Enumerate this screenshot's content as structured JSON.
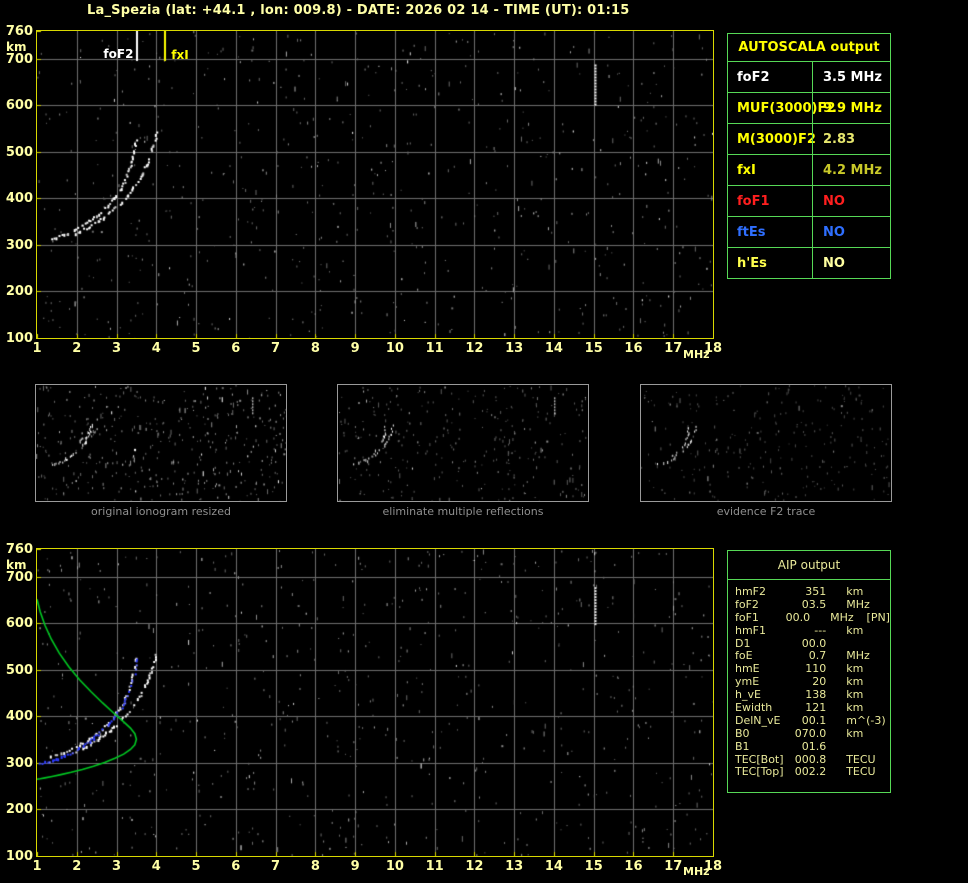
{
  "window": {
    "title": "La_Spezia (lat: +44.1 , lon: 009.8) - DATE: 2026 02 14 - TIME (UT): 01:15"
  },
  "colors": {
    "background": "#000000",
    "axis_text": "#ffffa6",
    "plot_border": "#d8d800",
    "grid": "#6f6f6f",
    "table_border": "#56d856",
    "caption": "#8f8f8f",
    "trace_white": "#ffffff",
    "scaled_trace_blue": "#2e3cff",
    "profile_green": "#00c822",
    "aip_text": "#e9e99a"
  },
  "autoscala_panel": {
    "title": "AUTOSCALA output",
    "title_color": "#ffff00",
    "rows": [
      {
        "label": "foF2",
        "value": "3.5 MHz",
        "label_color": "#ffffff",
        "value_color": "#ffffff"
      },
      {
        "label": "MUF(3000)F2",
        "value": "9.9 MHz",
        "label_color": "#ffff00",
        "value_color": "#ffff00"
      },
      {
        "label": "M(3000)F2",
        "value": "2.83",
        "label_color": "#ffff00",
        "value_color": "#e6e66e"
      },
      {
        "label": "fxI",
        "value": "4.2 MHz",
        "label_color": "#ffff00",
        "value_color": "#c9c929"
      },
      {
        "label": "foF1",
        "value": "NO",
        "label_color": "#ff1f1f",
        "value_color": "#ff1f1f"
      },
      {
        "label": "ftEs",
        "value": "NO",
        "label_color": "#2f6fff",
        "value_color": "#2f6fff"
      },
      {
        "label": "h'Es",
        "value": "NO",
        "label_color": "#ffff4d",
        "value_color": "#ffffa0"
      }
    ]
  },
  "aip_panel": {
    "title": "AIP output",
    "rows": [
      {
        "label": "hmF2",
        "value": "351",
        "unit": "km",
        "extra": ""
      },
      {
        "label": "foF2",
        "value": "03.5",
        "unit": "MHz",
        "extra": ""
      },
      {
        "label": "foF1",
        "value": "00.0",
        "unit": "MHz",
        "extra": "[PN]"
      },
      {
        "label": "hmF1",
        "value": "---",
        "unit": "km",
        "extra": ""
      },
      {
        "label": "D1",
        "value": "00.0",
        "unit": "",
        "extra": ""
      },
      {
        "label": "foE",
        "value": "0.7",
        "unit": "MHz",
        "extra": ""
      },
      {
        "label": "hmE",
        "value": "110",
        "unit": "km",
        "extra": ""
      },
      {
        "label": "ymE",
        "value": "20",
        "unit": "km",
        "extra": ""
      },
      {
        "label": "h_vE",
        "value": "138",
        "unit": "km",
        "extra": ""
      },
      {
        "label": "Ewidth",
        "value": "121",
        "unit": "km",
        "extra": ""
      },
      {
        "label": "DelN_vE",
        "value": "00.1",
        "unit": "m^(-3)",
        "extra": ""
      },
      {
        "label": "B0",
        "value": "070.0",
        "unit": "km",
        "extra": ""
      },
      {
        "label": "B1",
        "value": "01.6",
        "unit": "",
        "extra": ""
      },
      {
        "label": "TEC[Bot]",
        "value": "000.8",
        "unit": "TECU",
        "extra": ""
      },
      {
        "label": "TEC[Top]",
        "value": "002.2",
        "unit": "TECU",
        "extra": ""
      }
    ]
  },
  "thumbnails": [
    {
      "caption": "original ionogram resized",
      "noise_seed": 31,
      "noise_count": 420,
      "dim": 0,
      "interference": true
    },
    {
      "caption": "eliminate multiple reflections",
      "noise_seed": 47,
      "noise_count": 300,
      "dim": 1,
      "interference": true
    },
    {
      "caption": "evidence F2 trace",
      "noise_seed": 59,
      "noise_count": 260,
      "dim": 2,
      "interference": false
    }
  ],
  "chart_data": [
    {
      "name": "autoscala-ionogram",
      "type": "scatter",
      "xlabel": "MHz",
      "ylabel": "km",
      "xlim": [
        1,
        18
      ],
      "ylim": [
        100,
        760
      ],
      "xticks": [
        1,
        2,
        3,
        4,
        5,
        6,
        7,
        8,
        9,
        10,
        11,
        12,
        13,
        14,
        15,
        16,
        17,
        18
      ],
      "yticks": [
        100,
        200,
        300,
        400,
        500,
        600,
        700,
        760
      ],
      "grid": true,
      "noise_seed": 11,
      "noise_count": 640,
      "markers": [
        {
          "name": "foF2",
          "label": "foF2",
          "freq_mhz": 3.5,
          "color": "#ffffff"
        },
        {
          "name": "fxI",
          "label": "fxI",
          "freq_mhz": 4.2,
          "color": "#ffff00"
        }
      ],
      "series": [
        {
          "name": "F2 ordinary echo trace",
          "style": "dots",
          "color": "#ffffff",
          "points": [
            [
              1.3,
              315
            ],
            [
              1.42,
              317
            ],
            [
              1.55,
              320
            ],
            [
              1.68,
              324
            ],
            [
              1.82,
              329
            ],
            [
              1.96,
              335
            ],
            [
              2.1,
              342
            ],
            [
              2.24,
              350
            ],
            [
              2.38,
              358
            ],
            [
              2.52,
              367
            ],
            [
              2.66,
              377
            ],
            [
              2.79,
              388
            ],
            [
              2.91,
              400
            ],
            [
              3.02,
              413
            ],
            [
              3.12,
              427
            ],
            [
              3.21,
              443
            ],
            [
              3.29,
              460
            ],
            [
              3.36,
              478
            ],
            [
              3.41,
              496
            ],
            [
              3.45,
              514
            ],
            [
              3.48,
              532
            ]
          ]
        },
        {
          "name": "F2 extraordinary echo trace",
          "style": "dots",
          "color": "#ffffff",
          "points": [
            [
              1.95,
              326
            ],
            [
              2.08,
              331
            ],
            [
              2.22,
              337
            ],
            [
              2.36,
              344
            ],
            [
              2.5,
              352
            ],
            [
              2.64,
              360
            ],
            [
              2.78,
              369
            ],
            [
              2.92,
              379
            ],
            [
              3.06,
              390
            ],
            [
              3.2,
              402
            ],
            [
              3.33,
              415
            ],
            [
              3.45,
              429
            ],
            [
              3.56,
              444
            ],
            [
              3.66,
              460
            ],
            [
              3.75,
              477
            ],
            [
              3.83,
              495
            ],
            [
              3.9,
              513
            ],
            [
              3.96,
              531
            ],
            [
              4.01,
              548
            ]
          ]
        },
        {
          "name": "interference line 15 MHz",
          "style": "dash-v",
          "color": "#f2f2f2",
          "points": [
            [
              15.02,
              688
            ],
            [
              15.02,
              602
            ]
          ]
        }
      ]
    },
    {
      "name": "aip-ionogram",
      "type": "scatter",
      "xlabel": "MHz",
      "ylabel": "km",
      "xlim": [
        1,
        18
      ],
      "ylim": [
        100,
        760
      ],
      "xticks": [
        1,
        2,
        3,
        4,
        5,
        6,
        7,
        8,
        9,
        10,
        11,
        12,
        13,
        14,
        15,
        16,
        17,
        18
      ],
      "yticks": [
        100,
        200,
        300,
        400,
        500,
        600,
        700,
        760
      ],
      "grid": true,
      "noise_seed": 23,
      "noise_count": 640,
      "markers": [],
      "series": [
        {
          "name": "F2 ordinary echo trace",
          "style": "dots",
          "color": "#ffffff",
          "points": [
            [
              1.3,
              315
            ],
            [
              1.42,
              317
            ],
            [
              1.55,
              320
            ],
            [
              1.68,
              324
            ],
            [
              1.82,
              329
            ],
            [
              1.96,
              335
            ],
            [
              2.1,
              342
            ],
            [
              2.24,
              350
            ],
            [
              2.38,
              358
            ],
            [
              2.52,
              367
            ],
            [
              2.66,
              377
            ],
            [
              2.79,
              388
            ],
            [
              2.91,
              400
            ],
            [
              3.02,
              413
            ],
            [
              3.12,
              427
            ],
            [
              3.21,
              443
            ],
            [
              3.29,
              460
            ],
            [
              3.36,
              478
            ],
            [
              3.41,
              496
            ],
            [
              3.45,
              514
            ],
            [
              3.48,
              532
            ]
          ]
        },
        {
          "name": "F2 extraordinary echo trace",
          "style": "dots",
          "color": "#ffffff",
          "points": [
            [
              1.95,
              326
            ],
            [
              2.08,
              331
            ],
            [
              2.22,
              337
            ],
            [
              2.36,
              344
            ],
            [
              2.5,
              352
            ],
            [
              2.64,
              360
            ],
            [
              2.78,
              369
            ],
            [
              2.92,
              379
            ],
            [
              3.06,
              390
            ],
            [
              3.2,
              402
            ],
            [
              3.33,
              415
            ],
            [
              3.45,
              429
            ],
            [
              3.56,
              444
            ],
            [
              3.66,
              460
            ],
            [
              3.75,
              477
            ],
            [
              3.83,
              495
            ],
            [
              3.9,
              513
            ],
            [
              3.96,
              531
            ],
            [
              4.01,
              548
            ]
          ]
        },
        {
          "name": "interference line 15 MHz",
          "style": "dash-v",
          "color": "#f2f2f2",
          "points": [
            [
              15.02,
              678
            ],
            [
              15.02,
              598
            ]
          ]
        },
        {
          "name": "autoscaled F2 trace",
          "style": "dots",
          "color": "#2e3cff",
          "alt_color": "#7078ff",
          "points": [
            [
              1.0,
              299
            ],
            [
              1.12,
              301
            ],
            [
              1.26,
              304
            ],
            [
              1.42,
              308
            ],
            [
              1.58,
              313
            ],
            [
              1.75,
              319
            ],
            [
              1.92,
              327
            ],
            [
              2.09,
              336
            ],
            [
              2.26,
              346
            ],
            [
              2.43,
              357
            ],
            [
              2.6,
              369
            ],
            [
              2.76,
              382
            ],
            [
              2.91,
              397
            ],
            [
              3.05,
              413
            ],
            [
              3.17,
              430
            ],
            [
              3.27,
              449
            ],
            [
              3.36,
              469
            ],
            [
              3.42,
              489
            ],
            [
              3.47,
              510
            ],
            [
              3.5,
              528
            ]
          ]
        },
        {
          "name": "electron density profile",
          "style": "line",
          "color": "#00c822",
          "points": [
            [
              1.0,
              652
            ],
            [
              1.08,
              625
            ],
            [
              1.2,
              596
            ],
            [
              1.36,
              566
            ],
            [
              1.56,
              536
            ],
            [
              1.8,
              507
            ],
            [
              2.07,
              479
            ],
            [
              2.36,
              453
            ],
            [
              2.65,
              429
            ],
            [
              2.92,
              408
            ],
            [
              3.16,
              390
            ],
            [
              3.35,
              375
            ],
            [
              3.46,
              363
            ],
            [
              3.5,
              351
            ],
            [
              3.46,
              339
            ],
            [
              3.35,
              329
            ],
            [
              3.18,
              319
            ],
            [
              2.96,
              310
            ],
            [
              2.7,
              301
            ],
            [
              2.42,
              293
            ],
            [
              2.14,
              286
            ],
            [
              1.86,
              280
            ],
            [
              1.6,
              275
            ],
            [
              1.38,
              271
            ],
            [
              1.2,
              268
            ],
            [
              1.08,
              266
            ],
            [
              1.0,
              265
            ]
          ]
        }
      ]
    }
  ]
}
